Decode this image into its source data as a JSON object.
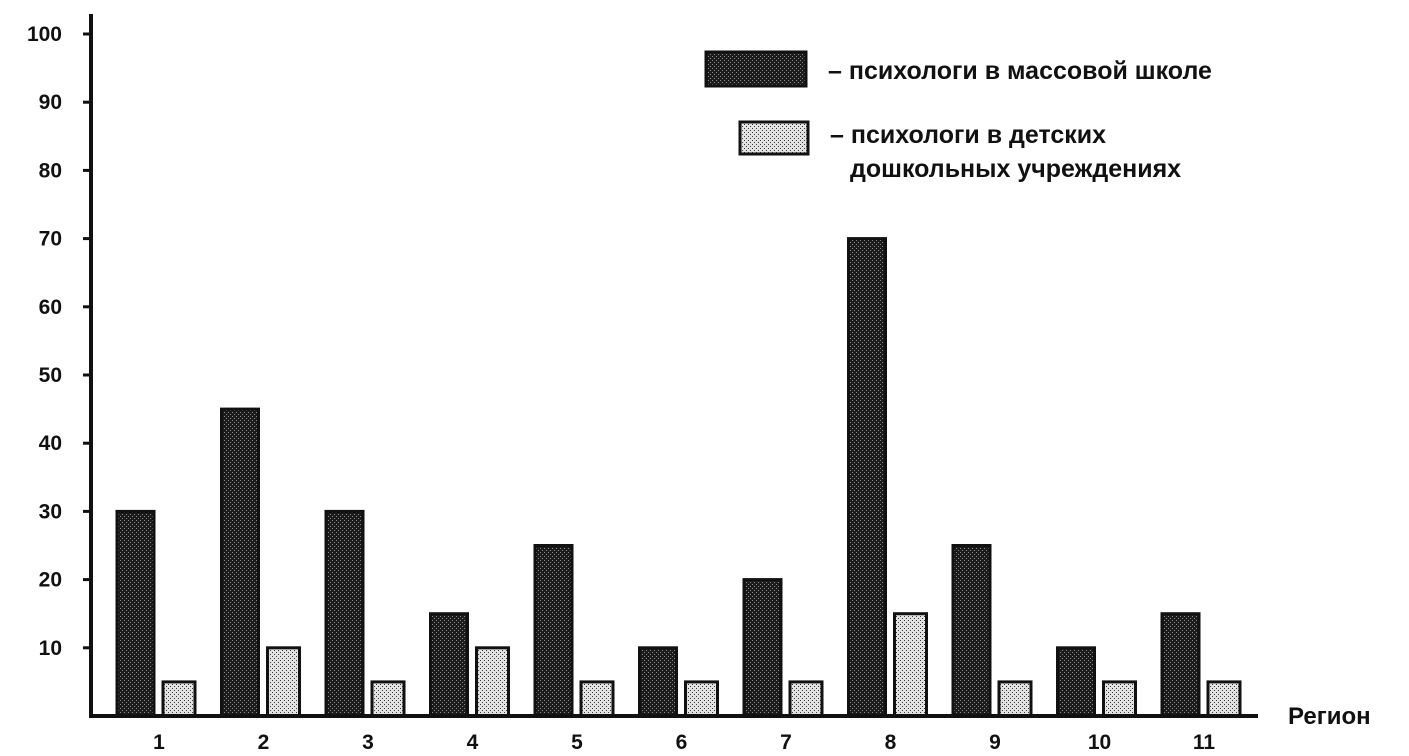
{
  "chart_data": {
    "type": "bar",
    "categories": [
      "1",
      "2",
      "3",
      "4",
      "5",
      "6",
      "7",
      "8",
      "9",
      "10",
      "11"
    ],
    "series": [
      {
        "name": "– психологи в массовой школе",
        "values": [
          30,
          45,
          30,
          15,
          25,
          10,
          20,
          70,
          25,
          10,
          15
        ],
        "color": "#1e1e1e"
      },
      {
        "name_lines": [
          "– психологи в детских",
          "дошкольных учреждениях"
        ],
        "values": [
          5,
          10,
          5,
          10,
          5,
          5,
          5,
          15,
          5,
          5,
          5
        ],
        "color": "#cfcfcf"
      }
    ],
    "y_ticks": [
      "10",
      "20",
      "30",
      "40",
      "50",
      "60",
      "70",
      "80",
      "90",
      "100"
    ],
    "xlabel": "Регион",
    "ylabel": "",
    "ylim": [
      0,
      100
    ],
    "grid": false,
    "legend_position": "top-right"
  }
}
